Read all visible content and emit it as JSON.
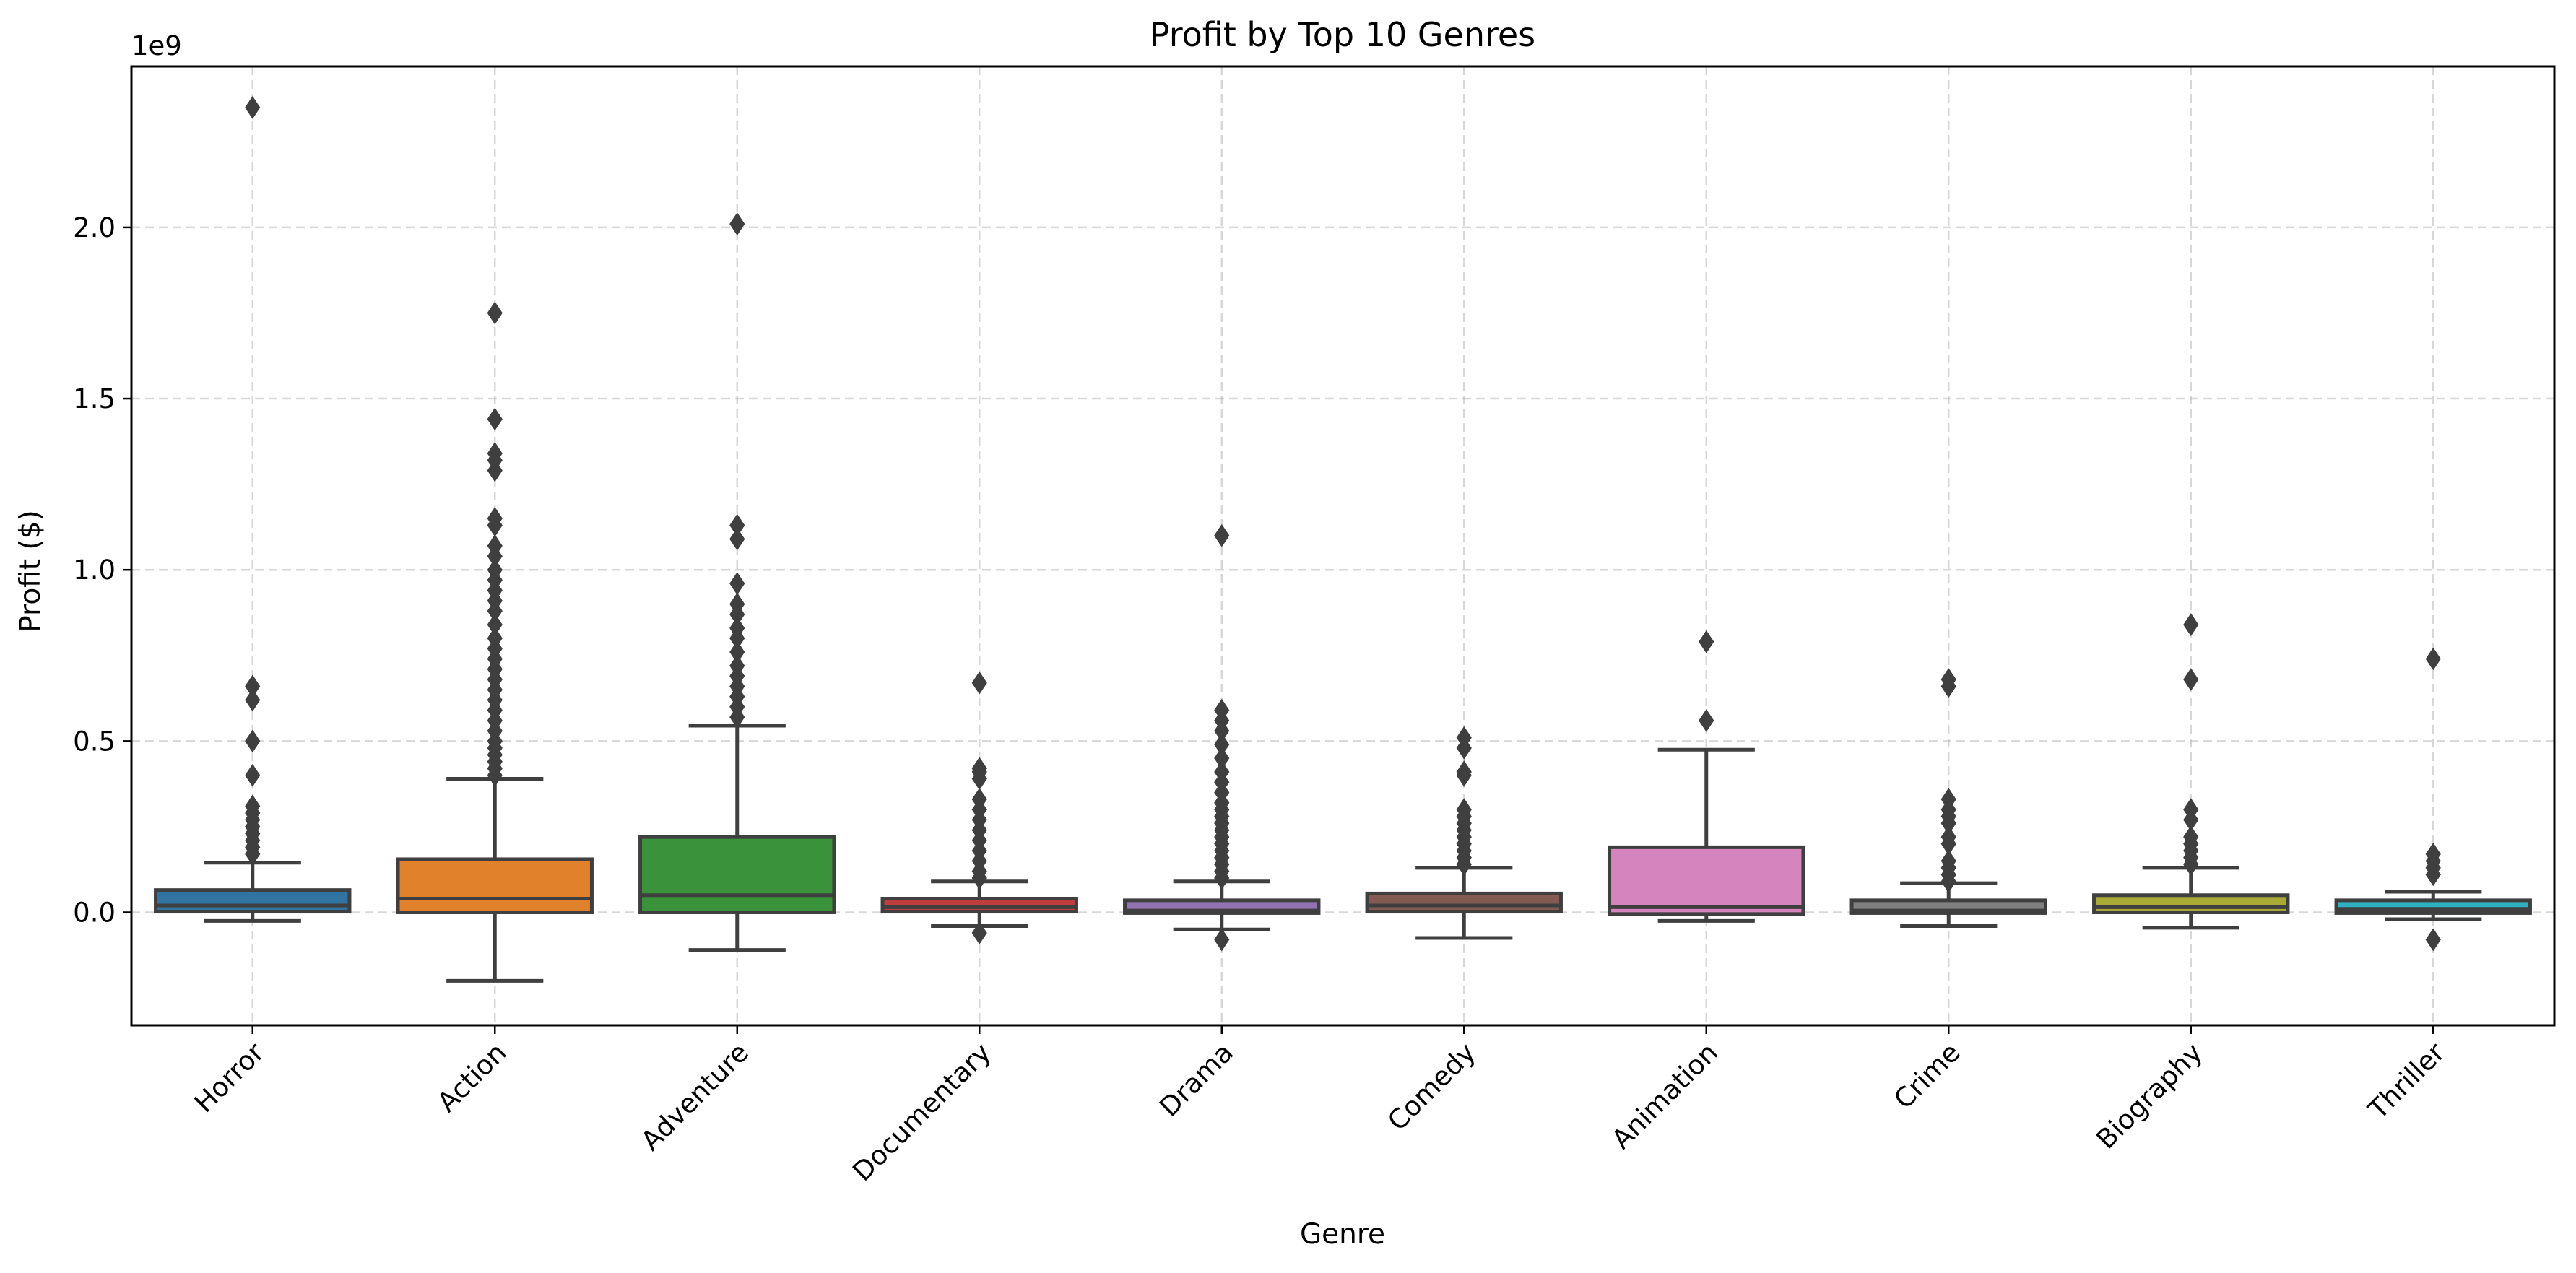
{
  "chart_data": {
    "type": "box",
    "title": "Profit by Top 10 Genres",
    "xlabel": "Genre",
    "ylabel": "Profit ($)",
    "y_offset_label": "1e9",
    "y_scale": 1000000000,
    "ylim": [
      -0.33,
      2.47
    ],
    "yticks": [
      0.0,
      0.5,
      1.0,
      1.5,
      2.0
    ],
    "ytick_labels": [
      "0.0",
      "0.5",
      "1.0",
      "1.5",
      "2.0"
    ],
    "grid": true,
    "units": "1e9 $",
    "categories": [
      "Horror",
      "Action",
      "Adventure",
      "Documentary",
      "Drama",
      "Comedy",
      "Animation",
      "Crime",
      "Biography",
      "Thriller"
    ],
    "series": [
      {
        "category": "Horror",
        "color": "#3274a1",
        "whisker_low": -0.025,
        "q1": 0.002,
        "median": 0.02,
        "q3": 0.065,
        "whisker_high": 0.145,
        "fliers": [
          0.17,
          0.19,
          0.21,
          0.23,
          0.25,
          0.27,
          0.29,
          0.31,
          0.4,
          0.5,
          0.62,
          0.66,
          2.35
        ]
      },
      {
        "category": "Action",
        "color": "#e1812c",
        "whisker_low": -0.2,
        "q1": 0.0,
        "median": 0.04,
        "q3": 0.155,
        "whisker_high": 0.39,
        "fliers": [
          0.4,
          0.42,
          0.44,
          0.46,
          0.48,
          0.5,
          0.53,
          0.56,
          0.59,
          0.62,
          0.65,
          0.68,
          0.71,
          0.74,
          0.77,
          0.8,
          0.84,
          0.88,
          0.91,
          0.94,
          0.97,
          1.0,
          1.04,
          1.07,
          1.13,
          1.15,
          1.29,
          1.32,
          1.34,
          1.44,
          1.75
        ]
      },
      {
        "category": "Adventure",
        "color": "#3a923a",
        "whisker_low": -0.11,
        "q1": 0.0,
        "median": 0.05,
        "q3": 0.22,
        "whisker_high": 0.545,
        "fliers": [
          0.57,
          0.6,
          0.63,
          0.66,
          0.69,
          0.72,
          0.76,
          0.8,
          0.83,
          0.87,
          0.9,
          0.96,
          1.09,
          1.13,
          2.01
        ]
      },
      {
        "category": "Documentary",
        "color": "#c03d3e",
        "whisker_low": -0.04,
        "q1": 0.002,
        "median": 0.015,
        "q3": 0.04,
        "whisker_high": 0.09,
        "fliers": [
          -0.06,
          0.1,
          0.12,
          0.15,
          0.18,
          0.21,
          0.24,
          0.27,
          0.3,
          0.33,
          0.39,
          0.41,
          0.42,
          0.67
        ]
      },
      {
        "category": "Drama",
        "color": "#9372b2",
        "whisker_low": -0.05,
        "q1": -0.002,
        "median": 0.005,
        "q3": 0.035,
        "whisker_high": 0.09,
        "fliers": [
          -0.08,
          0.1,
          0.12,
          0.14,
          0.16,
          0.18,
          0.2,
          0.22,
          0.24,
          0.26,
          0.28,
          0.3,
          0.32,
          0.35,
          0.38,
          0.41,
          0.45,
          0.49,
          0.53,
          0.56,
          0.59,
          1.1
        ]
      },
      {
        "category": "Comedy",
        "color": "#845b53",
        "whisker_low": -0.075,
        "q1": 0.002,
        "median": 0.02,
        "q3": 0.055,
        "whisker_high": 0.13,
        "fliers": [
          0.14,
          0.16,
          0.18,
          0.2,
          0.22,
          0.24,
          0.26,
          0.28,
          0.3,
          0.4,
          0.41,
          0.48,
          0.51
        ]
      },
      {
        "category": "Animation",
        "color": "#d684bd",
        "whisker_low": -0.025,
        "q1": -0.005,
        "median": 0.015,
        "q3": 0.19,
        "whisker_high": 0.475,
        "fliers": [
          0.56,
          0.79
        ]
      },
      {
        "category": "Crime",
        "color": "#7f7f7f",
        "whisker_low": -0.04,
        "q1": -0.002,
        "median": 0.005,
        "q3": 0.035,
        "whisker_high": 0.085,
        "fliers": [
          0.09,
          0.11,
          0.13,
          0.15,
          0.2,
          0.22,
          0.26,
          0.28,
          0.3,
          0.33,
          0.66,
          0.68
        ]
      },
      {
        "category": "Biography",
        "color": "#a9aa35",
        "whisker_low": -0.045,
        "q1": 0.0,
        "median": 0.015,
        "q3": 0.05,
        "whisker_high": 0.13,
        "fliers": [
          0.14,
          0.16,
          0.18,
          0.2,
          0.22,
          0.27,
          0.3,
          0.68,
          0.84
        ]
      },
      {
        "category": "Thriller",
        "color": "#2eb0c0",
        "whisker_low": -0.02,
        "q1": -0.002,
        "median": 0.01,
        "q3": 0.035,
        "whisker_high": 0.06,
        "fliers": [
          -0.08,
          0.11,
          0.13,
          0.15,
          0.17,
          0.74
        ]
      }
    ]
  }
}
